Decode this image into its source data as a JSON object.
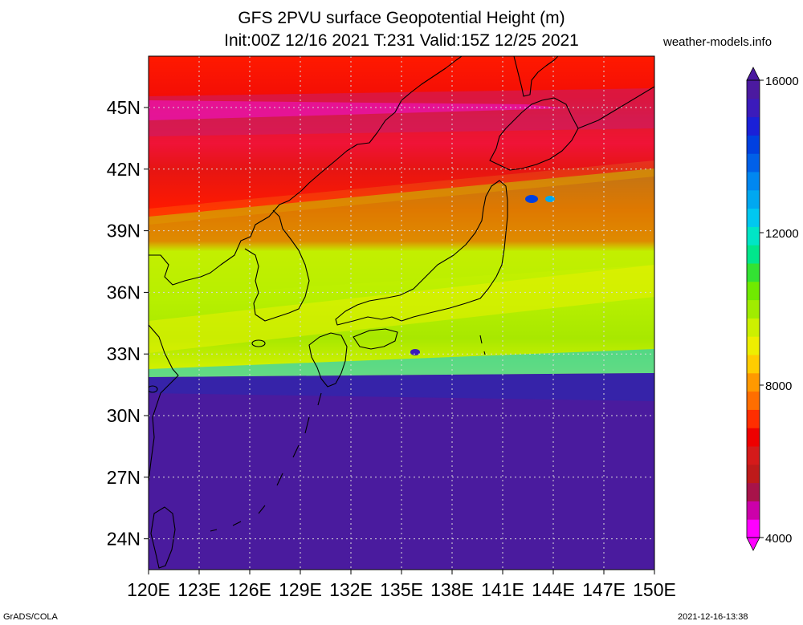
{
  "title": {
    "line1": "GFS 2PVU surface Geopotential Height (m)",
    "line2": "Init:00Z 12/16 2021 T:231 Valid:15Z 12/25 2021"
  },
  "source_credit": "weather-models.info",
  "footer": {
    "software": "GrADS/COLA",
    "timestamp": "2021-12-16-13:38"
  },
  "map": {
    "lon_range": [
      120,
      150
    ],
    "lat_range": [
      22.5,
      47.5
    ],
    "lon_ticks": [
      "120E",
      "123E",
      "126E",
      "129E",
      "132E",
      "135E",
      "138E",
      "141E",
      "144E",
      "147E",
      "150E"
    ],
    "lat_ticks": [
      "45N",
      "42N",
      "39N",
      "36N",
      "33N",
      "30N",
      "27N",
      "24N"
    ],
    "grid": true,
    "colors": {
      "coast": "#000000",
      "grid": "#d8d8d8"
    }
  },
  "colorbar": {
    "labels": [
      "16000",
      "12000",
      "8000",
      "4000"
    ],
    "min": 4000,
    "max": 16000,
    "colors": [
      "#ff00ff",
      "#cc00aa",
      "#a8134a",
      "#be1a1a",
      "#d51a1a",
      "#ee0000",
      "#ff2e00",
      "#ff6e00",
      "#ff9900",
      "#ffcc00",
      "#eeee00",
      "#ccf000",
      "#a0ec00",
      "#70ea00",
      "#33e233",
      "#00e68c",
      "#00e5c6",
      "#00c8f0",
      "#00a8f0",
      "#0087f0",
      "#0060e8",
      "#0040e0",
      "#1a20d8",
      "#3b1bbb",
      "#4b1aa0"
    ]
  }
}
